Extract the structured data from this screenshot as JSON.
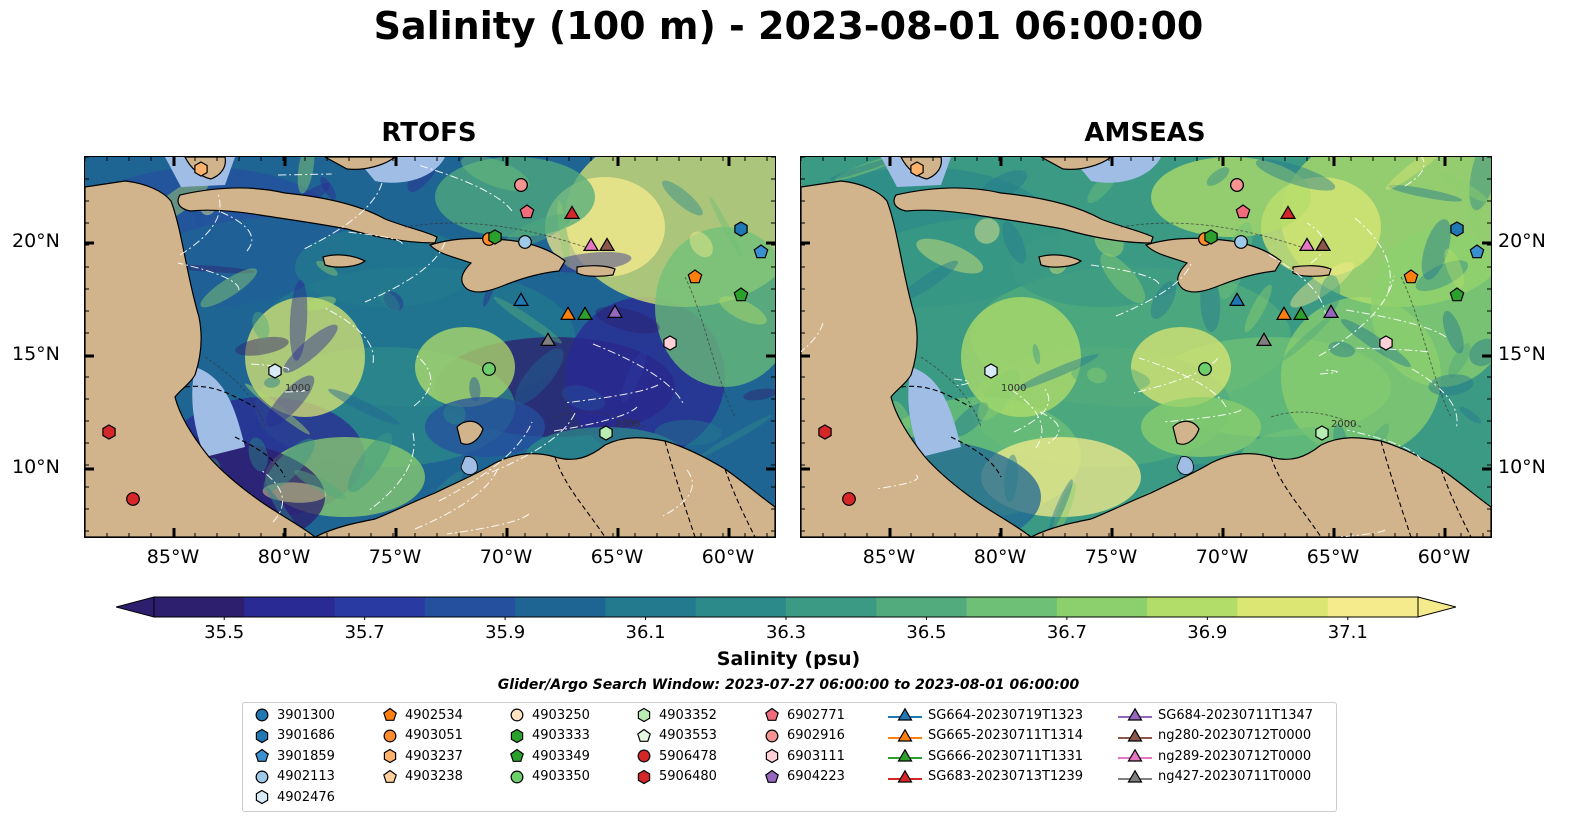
{
  "title": "Salinity (100 m) - 2023-08-01 06:00:00",
  "panels": [
    {
      "title": "RTOFS"
    },
    {
      "title": "AMSEAS"
    }
  ],
  "axes": {
    "x_ticks": [
      "85°W",
      "80°W",
      "75°W",
      "70°W",
      "65°W",
      "60°W"
    ],
    "y_ticks": [
      "20°N",
      "15°N",
      "10°N"
    ],
    "contour_labels": [
      "1000",
      "2000"
    ]
  },
  "colorbar": {
    "label": "Salinity (psu)",
    "ticks": [
      "35.5",
      "35.7",
      "35.9",
      "36.1",
      "36.3",
      "36.5",
      "36.7",
      "36.9",
      "37.1"
    ],
    "range": [
      35.4,
      37.2
    ],
    "colors": [
      "#2e1e6e",
      "#2a2a94",
      "#2a3aa3",
      "#24509e",
      "#1f6594",
      "#237a8e",
      "#2c8a8a",
      "#3b9a84",
      "#52ab7c",
      "#6ec077",
      "#8ccf6d",
      "#b3dd69",
      "#dbe673",
      "#f6eb8c"
    ],
    "extend": "both"
  },
  "search_window": "Glider/Argo Search Window: 2023-07-27 06:00:00 to 2023-08-01 06:00:00",
  "legend": [
    {
      "label": "3901300",
      "marker": "circle",
      "color": "#1f77b4"
    },
    {
      "label": "3901686",
      "marker": "hexagon",
      "color": "#1f77b4"
    },
    {
      "label": "3901859",
      "marker": "pentagon",
      "color": "#3a8fd0"
    },
    {
      "label": "4902113",
      "marker": "circle",
      "color": "#9ecae9"
    },
    {
      "label": "4902476",
      "marker": "hexagon",
      "color": "#d6eaf8"
    },
    {
      "label": "4902534",
      "marker": "pentagon",
      "color": "#ff7f0e"
    },
    {
      "label": "4903051",
      "marker": "circle",
      "color": "#ff8c2a"
    },
    {
      "label": "4903237",
      "marker": "hexagon",
      "color": "#ffb26b"
    },
    {
      "label": "4903238",
      "marker": "pentagon",
      "color": "#ffcf9e"
    },
    {
      "label": "4903250",
      "marker": "circle",
      "color": "#ffe3c4"
    },
    {
      "label": "4903333",
      "marker": "hexagon",
      "color": "#2ca02c"
    },
    {
      "label": "4903349",
      "marker": "pentagon",
      "color": "#2ca02c"
    },
    {
      "label": "4903350",
      "marker": "circle",
      "color": "#6ccf6c"
    },
    {
      "label": "4903352",
      "marker": "hexagon",
      "color": "#b7ecb2"
    },
    {
      "label": "4903553",
      "marker": "pentagon",
      "color": "#e3f8df"
    },
    {
      "label": "5906478",
      "marker": "circle",
      "color": "#d62728"
    },
    {
      "label": "5906480",
      "marker": "hexagon",
      "color": "#d62728"
    },
    {
      "label": "6902771",
      "marker": "pentagon",
      "color": "#f06b7b"
    },
    {
      "label": "6902916",
      "marker": "circle",
      "color": "#f4938f"
    },
    {
      "label": "6903111",
      "marker": "hexagon",
      "color": "#ffd0d6"
    },
    {
      "label": "6904223",
      "marker": "pentagon",
      "color": "#9467bd"
    },
    {
      "label": "SG664-20230719T1323",
      "marker": "triangle",
      "color": "#1f77b4"
    },
    {
      "label": "SG665-20230711T1314",
      "marker": "triangle",
      "color": "#ff7f0e"
    },
    {
      "label": "SG666-20230711T1331",
      "marker": "triangle",
      "color": "#2ca02c"
    },
    {
      "label": "SG683-20230713T1239",
      "marker": "triangle",
      "color": "#d62728"
    },
    {
      "label": "SG684-20230711T1347",
      "marker": "triangle",
      "color": "#9467bd"
    },
    {
      "label": "ng280-20230712T0000",
      "marker": "triangle",
      "color": "#8c564b"
    },
    {
      "label": "ng289-20230712T0000",
      "marker": "triangle",
      "color": "#e377c2"
    },
    {
      "label": "ng427-20230711T0000",
      "marker": "triangle",
      "color": "#7f7f7f"
    }
  ],
  "colors": {
    "land": "#d2b48c",
    "shelf": "#a0bde6",
    "border": "#000000"
  }
}
